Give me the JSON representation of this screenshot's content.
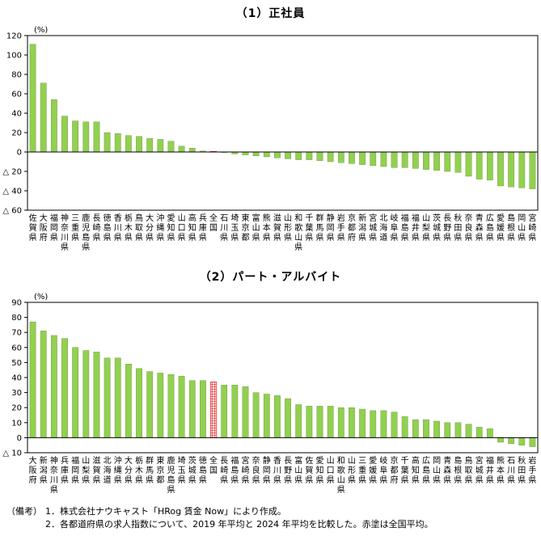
{
  "chart_data": [
    {
      "type": "bar",
      "title": "（1）正社員",
      "ylabel": "(%)",
      "ylim": [
        -60,
        120
      ],
      "yticks": [
        120,
        100,
        80,
        60,
        40,
        20,
        0,
        -20,
        -40,
        -60
      ],
      "ytick_labels": [
        "120",
        "100",
        "80",
        "60",
        "40",
        "20",
        "0",
        "△ 20",
        "△ 40",
        "△ 60"
      ],
      "bar_color": "#92d050",
      "highlight_color": "#e02020",
      "highlight_category": "全国",
      "categories": [
        "佐賀県",
        "大阪府",
        "福岡県",
        "神奈川県",
        "三重県",
        "鹿児島県",
        "長崎県",
        "徳島県",
        "香川県",
        "栃木県",
        "鳥取県",
        "大分県",
        "沖縄県",
        "愛知県",
        "山口県",
        "高知県",
        "兵庫県",
        "全国",
        "石川県",
        "埼玉県",
        "東京都",
        "富山県",
        "熊本県",
        "滋賀県",
        "山形県",
        "和歌山県",
        "千葉県",
        "群馬県",
        "静岡県",
        "岩手県",
        "京都府",
        "新潟県",
        "宮城県",
        "北海道",
        "岐阜県",
        "福島県",
        "福井県",
        "山梨県",
        "茨城県",
        "長野県",
        "秋田県",
        "奈良県",
        "青森県",
        "広島県",
        "愛媛県",
        "島根県",
        "岡山県",
        "宮崎県"
      ],
      "values": [
        111,
        71,
        54,
        37,
        32,
        31,
        31,
        20,
        19,
        17,
        16,
        14,
        13,
        11,
        6,
        4,
        1,
        0.5,
        0,
        -2,
        -3,
        -4,
        -5,
        -6,
        -7,
        -8,
        -8,
        -9,
        -10,
        -11,
        -12,
        -13,
        -14,
        -15,
        -16,
        -16,
        -17,
        -18,
        -19,
        -20,
        -21,
        -25,
        -28,
        -29,
        -35,
        -36,
        -37,
        -38
      ]
    },
    {
      "type": "bar",
      "title": "（2）パート・アルバイト",
      "ylabel": "(%)",
      "ylim": [
        -10,
        90
      ],
      "yticks": [
        90,
        80,
        70,
        60,
        50,
        40,
        30,
        20,
        10,
        0,
        -10
      ],
      "ytick_labels": [
        "90",
        "80",
        "70",
        "60",
        "50",
        "40",
        "30",
        "20",
        "10",
        "0",
        "△ 10"
      ],
      "bar_color": "#92d050",
      "highlight_color": "#e02020",
      "highlight_category": "全国",
      "categories": [
        "大阪府",
        "新潟県",
        "神奈川県",
        "兵庫県",
        "福岡県",
        "山梨県",
        "滋賀県",
        "北海道",
        "沖縄県",
        "大分県",
        "栃木県",
        "群馬県",
        "東京都",
        "鹿児島県",
        "埼玉県",
        "茨城県",
        "徳島県",
        "全国",
        "長崎県",
        "福島県",
        "宮崎県",
        "奈良県",
        "静岡県",
        "香川県",
        "長野県",
        "富山県",
        "佐賀県",
        "愛知県",
        "山口県",
        "和歌山県",
        "山形県",
        "三重県",
        "愛媛県",
        "岐阜県",
        "京都府",
        "千葉県",
        "高知県",
        "広島県",
        "岡山県",
        "青森県",
        "島根県",
        "鳥取県",
        "宮城県",
        "福井県",
        "熊本県",
        "石川県",
        "秋田県",
        "岩手県"
      ],
      "values": [
        77,
        71,
        68,
        66,
        60,
        58,
        57,
        53,
        53,
        49,
        46,
        44,
        43,
        42,
        41,
        38,
        38,
        37,
        35,
        35,
        34,
        30,
        29,
        28,
        26,
        22,
        21,
        21,
        21,
        20,
        20,
        19,
        18,
        18,
        17,
        14,
        12,
        12,
        11,
        10,
        10,
        9,
        7,
        6,
        -3,
        -4,
        -5,
        -6
      ]
    }
  ],
  "notes": {
    "label": "（備考）",
    "item1": "1．株式会社ナウキャスト「HRog 賃金 Now」により作成。",
    "item2": "2．各都道府県の求人指数について、2019 年平均と 2024 年平均を比較した。赤塗は全国平均。"
  }
}
